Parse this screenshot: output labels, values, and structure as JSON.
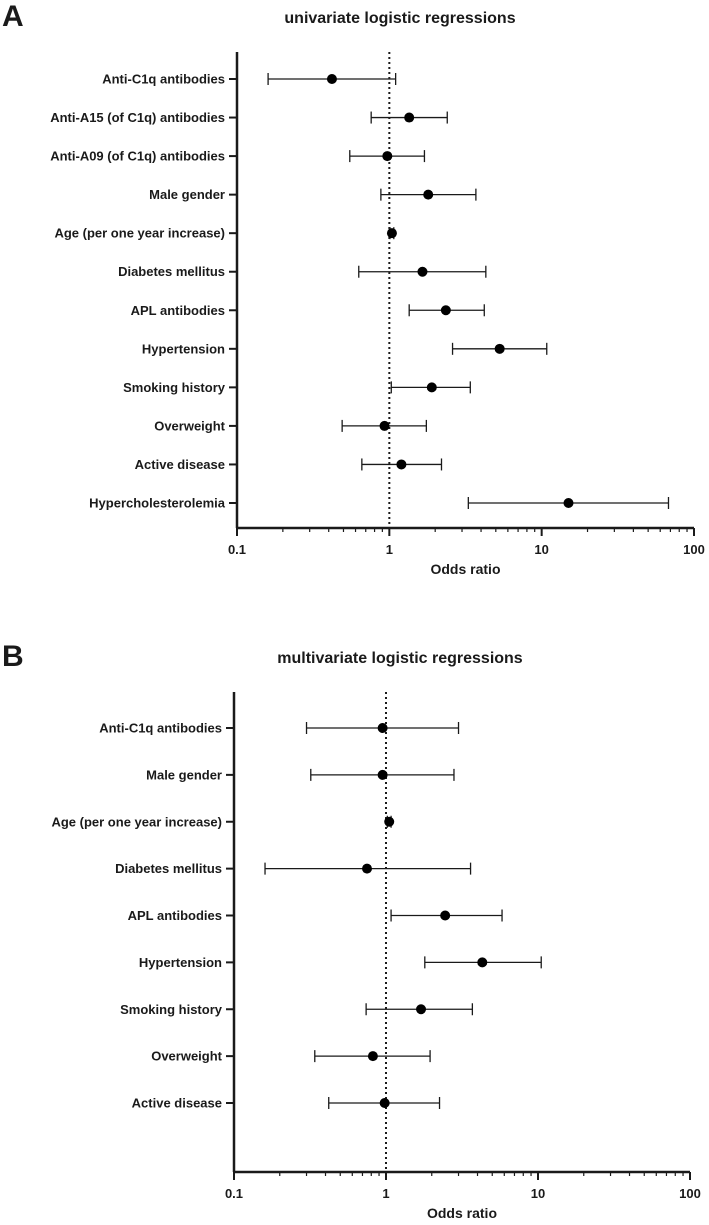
{
  "chart_data": [
    {
      "type": "scatter",
      "panel_label": "A",
      "title": "univariate logistic regressions",
      "xlabel": "Odds ratio",
      "xscale": "log",
      "xlim": [
        0.1,
        100
      ],
      "xticks": [
        0.1,
        1,
        10,
        100
      ],
      "xtick_labels": [
        "0.1",
        "1",
        "10",
        "100"
      ],
      "reference_line": 1,
      "rows": [
        {
          "label": "Anti-C1q antibodies",
          "or": 0.42,
          "lo": 0.16,
          "hi": 1.1
        },
        {
          "label": "Anti-A15 (of C1q) antibodies",
          "or": 1.35,
          "lo": 0.76,
          "hi": 2.4
        },
        {
          "label": "Anti-A09 (of C1q) antibodies",
          "or": 0.97,
          "lo": 0.55,
          "hi": 1.7
        },
        {
          "label": "Male gender",
          "or": 1.8,
          "lo": 0.88,
          "hi": 3.7
        },
        {
          "label": "Age (per one year increase)",
          "or": 1.04,
          "lo": 1.01,
          "hi": 1.07
        },
        {
          "label": "Diabetes mellitus",
          "or": 1.65,
          "lo": 0.63,
          "hi": 4.3
        },
        {
          "label": "APL antibodies",
          "or": 2.35,
          "lo": 1.35,
          "hi": 4.2
        },
        {
          "label": "Hypertension",
          "or": 5.3,
          "lo": 2.6,
          "hi": 10.8
        },
        {
          "label": "Smoking history",
          "or": 1.9,
          "lo": 1.03,
          "hi": 3.4
        },
        {
          "label": "Overweight",
          "or": 0.93,
          "lo": 0.49,
          "hi": 1.75
        },
        {
          "label": "Active disease",
          "or": 1.2,
          "lo": 0.66,
          "hi": 2.2
        },
        {
          "label": "Hypercholesterolemia",
          "or": 15.0,
          "lo": 3.3,
          "hi": 68.0
        }
      ]
    },
    {
      "type": "scatter",
      "panel_label": "B",
      "title": "multivariate logistic regressions",
      "xlabel": "Odds ratio",
      "xscale": "log",
      "xlim": [
        0.1,
        100
      ],
      "xticks": [
        0.1,
        1,
        10,
        100
      ],
      "xtick_labels": [
        "0.1",
        "1",
        "10",
        "100"
      ],
      "reference_line": 1,
      "rows": [
        {
          "label": "Anti-C1q antibodies",
          "or": 0.95,
          "lo": 0.3,
          "hi": 3.0
        },
        {
          "label": "Male gender",
          "or": 0.95,
          "lo": 0.32,
          "hi": 2.8
        },
        {
          "label": "Age (per one year increase)",
          "or": 1.05,
          "lo": 1.02,
          "hi": 1.08
        },
        {
          "label": "Diabetes mellitus",
          "or": 0.75,
          "lo": 0.16,
          "hi": 3.6
        },
        {
          "label": "APL antibodies",
          "or": 2.45,
          "lo": 1.08,
          "hi": 5.8
        },
        {
          "label": "Hypertension",
          "or": 4.3,
          "lo": 1.8,
          "hi": 10.5
        },
        {
          "label": "Smoking history",
          "or": 1.7,
          "lo": 0.74,
          "hi": 3.7
        },
        {
          "label": "Overweight",
          "or": 0.82,
          "lo": 0.34,
          "hi": 1.95
        },
        {
          "label": "Active disease",
          "or": 0.98,
          "lo": 0.42,
          "hi": 2.25
        }
      ]
    }
  ]
}
